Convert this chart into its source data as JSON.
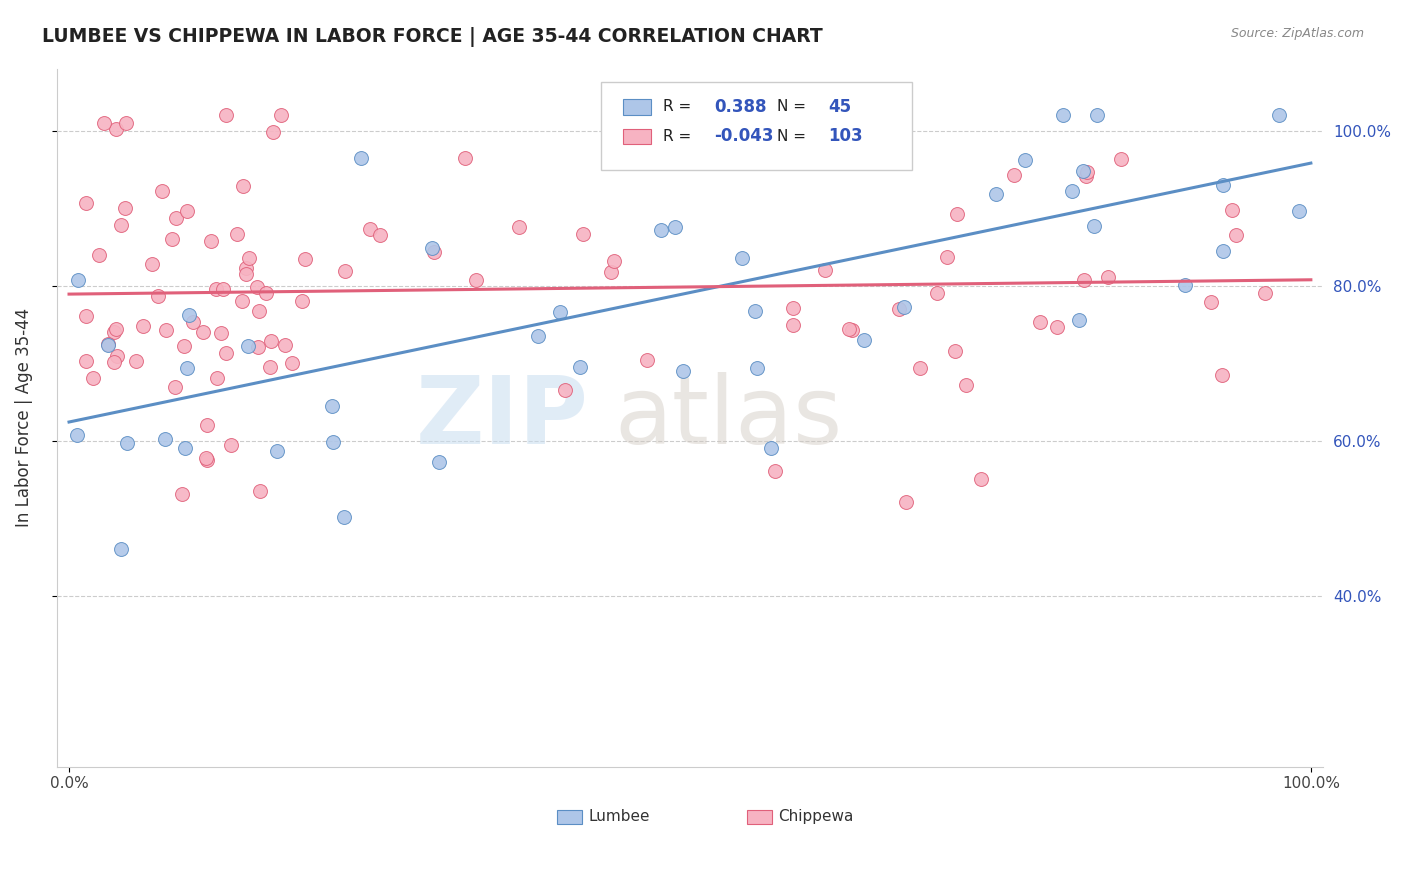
{
  "title": "LUMBEE VS CHIPPEWA IN LABOR FORCE | AGE 35-44 CORRELATION CHART",
  "source_text": "Source: ZipAtlas.com",
  "ylabel": "In Labor Force | Age 35-44",
  "watermark_zip": "ZIP",
  "watermark_atlas": "atlas",
  "legend_lumbee_r": "0.388",
  "legend_lumbee_n": "45",
  "legend_chippewa_r": "-0.043",
  "legend_chippewa_n": "103",
  "lumbee_color": "#aec6e8",
  "chippewa_color": "#f7b3c2",
  "lumbee_line_color": "#5b8ec4",
  "chippewa_line_color": "#e0607a",
  "background_color": "#ffffff",
  "grid_color": "#cccccc",
  "right_tick_color": "#3355bb",
  "title_color": "#222222",
  "source_color": "#888888"
}
